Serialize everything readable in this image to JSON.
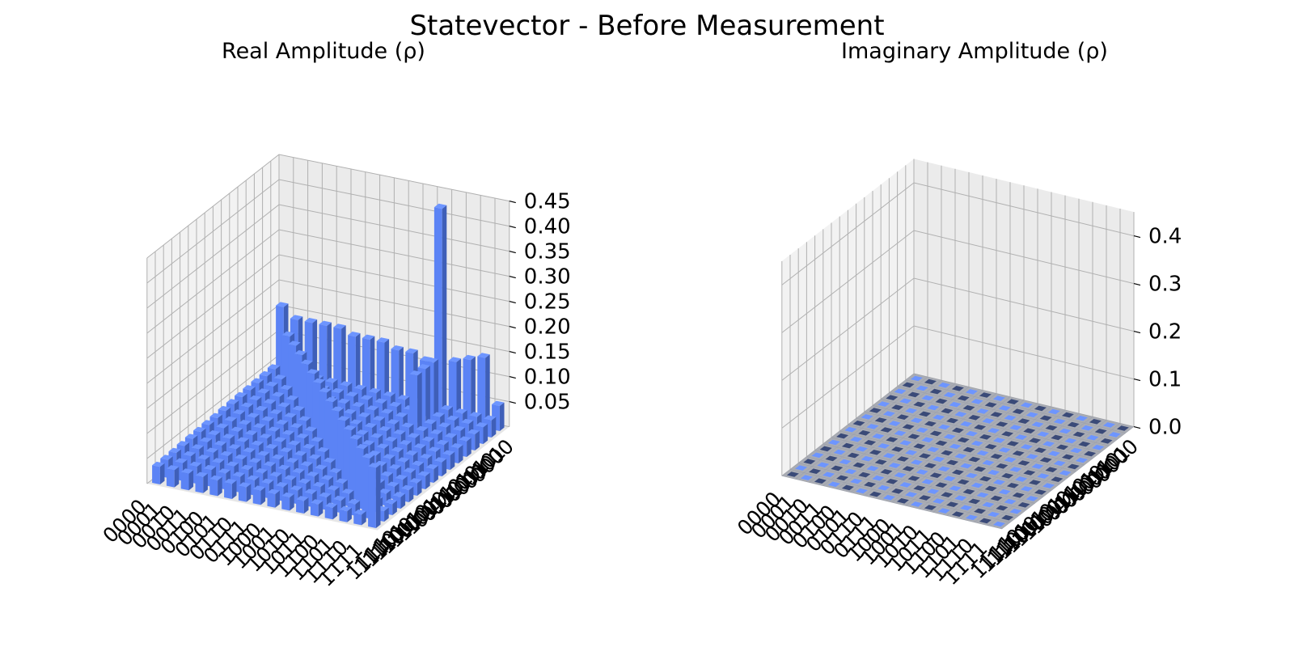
{
  "figure": {
    "title": "Statevector - Before Measurement"
  },
  "colors": {
    "bar_top": "#6d95ff",
    "bar_face_light": "#5b83f5",
    "bar_face_dark": "#3f5fb8",
    "pane": "#f2f2f2",
    "grid": "#b0b0b0",
    "zero_cell": "#a9acb4",
    "zero_cell_dark": "#3a4a78"
  },
  "chart_data": [
    {
      "type": "bar3d",
      "title": "Real Amplitude (ρ)",
      "basis_labels": [
        "0000",
        "0001",
        "0010",
        "0011",
        "0100",
        "0101",
        "0110",
        "0111",
        "1000",
        "1001",
        "1010",
        "1011",
        "1100",
        "1101",
        "1110",
        "1111"
      ],
      "zlim": [
        0,
        0.45
      ],
      "zticks": [
        "0.05",
        "0.10",
        "0.15",
        "0.20",
        "0.25",
        "0.30",
        "0.35",
        "0.40",
        "0.45"
      ],
      "values_note_free": true,
      "back_row_values": [
        0.16,
        0.14,
        0.14,
        0.14,
        0.14,
        0.13,
        0.13,
        0.13,
        0.12,
        0.12,
        0.11,
        0.42,
        0.12,
        0.13,
        0.14,
        0.05
      ],
      "peak_value": 0.42,
      "low_values_min": 0.02,
      "low_values_max": 0.05,
      "grid": true
    },
    {
      "type": "bar3d",
      "title": "Imaginary Amplitude (ρ)",
      "basis_labels": [
        "0000",
        "0001",
        "0010",
        "0011",
        "0100",
        "0101",
        "0110",
        "0111",
        "1000",
        "1001",
        "1010",
        "1011",
        "1100",
        "1101",
        "1110",
        "1111"
      ],
      "zlim": [
        0,
        0.45
      ],
      "zticks": [
        "0.0",
        "0.1",
        "0.2",
        "0.3",
        "0.4"
      ],
      "values": 0.0,
      "grid": true
    }
  ]
}
